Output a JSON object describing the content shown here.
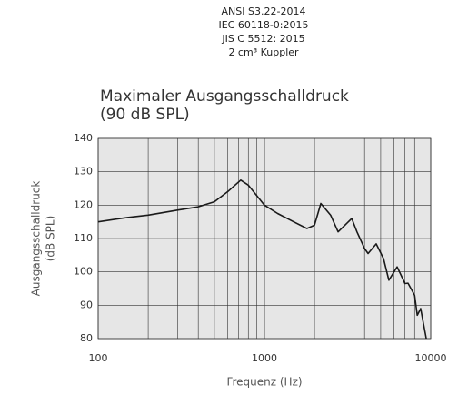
{
  "chart_data": {
    "type": "line",
    "header": [
      "ANSI S3.22-2014",
      "IEC 60118-0:2015",
      "JIS C 5512: 2015",
      "2 cm³ Kuppler"
    ],
    "title": [
      "Maximaler Ausgangsschalldruck",
      "(90 dB SPL)"
    ],
    "xlabel": "Frequenz (Hz)",
    "ylabel": [
      "Ausgangsschalldruck",
      "(dB SPL)"
    ],
    "x": [
      100,
      150,
      200,
      300,
      400,
      500,
      600,
      720,
      800,
      1000,
      1200,
      1500,
      1800,
      2000,
      2183,
      2500,
      2773,
      3350,
      3600,
      4000,
      4200,
      4700,
      5200,
      5600,
      6280,
      7000,
      7300,
      8000,
      8300,
      8700,
      9000,
      9400
    ],
    "series": [
      {
        "name": "Ausgangsschalldruck",
        "color": "#1a1a1a",
        "values": [
          115,
          116.3,
          117,
          118.5,
          119.5,
          121,
          124,
          127.5,
          126,
          120,
          117.5,
          115,
          113,
          114,
          120.5,
          117,
          112,
          116,
          112,
          107,
          105.5,
          108.4,
          104,
          97.5,
          101.5,
          96.5,
          96.6,
          93,
          87,
          89,
          85,
          80
        ]
      }
    ],
    "xlog": true,
    "xlim": [
      100,
      10000
    ],
    "xticks": [
      100,
      1000,
      10000
    ],
    "xminorticks": [
      200,
      300,
      400,
      500,
      600,
      700,
      800,
      900,
      2000,
      3000,
      4000,
      5000,
      6000,
      7000,
      8000,
      9000
    ],
    "ylim": [
      80,
      140
    ],
    "yticks": [
      80,
      90,
      100,
      110,
      120,
      130,
      140
    ],
    "grid": true
  }
}
